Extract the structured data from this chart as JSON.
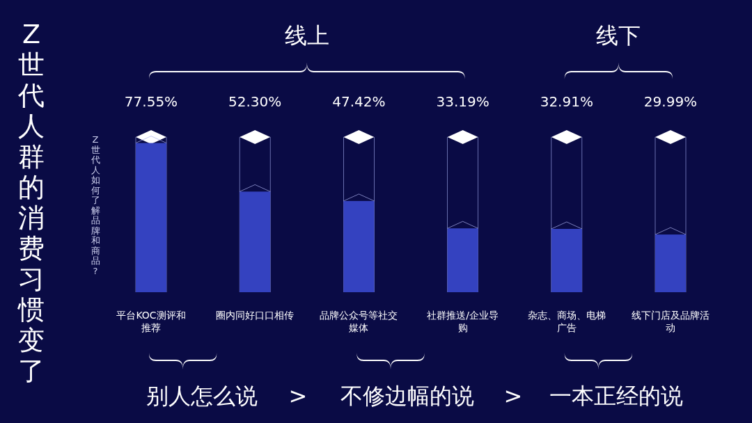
{
  "chart_data": {
    "type": "bar",
    "title": "Z世代人群的消费习惯变了",
    "ylabel": "Z世代人如何了解品牌和商品?",
    "categories": [
      "平台KOC测评和推荐",
      "圈内同好口口相传",
      "品牌公众号等社交媒体",
      "社群推送/企业导购",
      "杂志、商场、电梯广告",
      "线下门店及品牌活动"
    ],
    "values": [
      77.55,
      52.3,
      47.42,
      33.19,
      32.91,
      29.99
    ],
    "value_labels": [
      "77.55%",
      "52.30%",
      "47.42%",
      "33.19%",
      "32.91%",
      "29.99%"
    ],
    "color": "#3442c0",
    "annotations": [
      "线上",
      "线下",
      "别人怎么说",
      ">",
      "不修边幅的说",
      ">",
      "一本正经的说"
    ]
  }
}
